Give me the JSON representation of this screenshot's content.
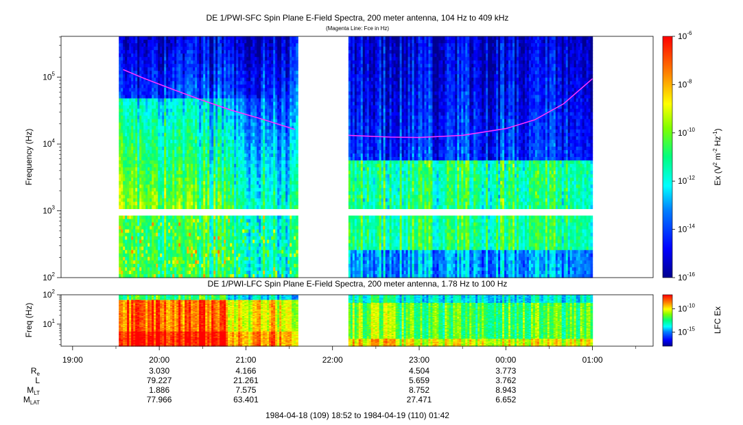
{
  "chart_data": [
    {
      "type": "heatmap",
      "id": "sfc",
      "title": "DE 1/PWI-SFC  Spin Plane E-Field Spectra, 200 meter antenna, 104 Hz to 409 kHz",
      "subtitle": "(Magenta Line: Fce in Hz)",
      "ylabel": "Frequency (Hz)",
      "y_scale": "log",
      "ylim": [
        100,
        409000
      ],
      "y_ticks": [
        {
          "value": 100,
          "base": "10",
          "exp": "2"
        },
        {
          "value": 1000,
          "base": "10",
          "exp": "3"
        },
        {
          "value": 10000,
          "base": "10",
          "exp": "4"
        },
        {
          "value": 100000,
          "base": "10",
          "exp": "5"
        }
      ],
      "x_range": [
        "18:52",
        "01:42"
      ],
      "data_intervals": [
        [
          "19:32",
          "21:36"
        ],
        [
          "22:11",
          "01:00"
        ]
      ],
      "colorbar": {
        "label_main": "Ex (V",
        "label_sup1": "2",
        "label_mid": " m",
        "label_sup2": "-2",
        "label_mid2": " Hz",
        "label_sup3": "-1",
        "label_end": ")",
        "scale": "log",
        "range": [
          1e-16,
          1e-06
        ],
        "ticks": [
          {
            "value": 1e-06,
            "base": "10",
            "exp": "-6"
          },
          {
            "value": 1e-08,
            "base": "10",
            "exp": "-8"
          },
          {
            "value": 1e-10,
            "base": "10",
            "exp": "-10"
          },
          {
            "value": 1e-12,
            "base": "10",
            "exp": "-12"
          },
          {
            "value": 1e-14,
            "base": "10",
            "exp": "-14"
          },
          {
            "value": 1e-16,
            "base": "10",
            "exp": "-16"
          }
        ]
      },
      "fce_line": {
        "color": "#ff33ff",
        "segment1": [
          [
            "19:35",
            130000
          ],
          [
            "19:50",
            95000
          ],
          [
            "20:10",
            65000
          ],
          [
            "20:30",
            45000
          ],
          [
            "20:50",
            32000
          ],
          [
            "21:10",
            24000
          ],
          [
            "21:34",
            16500
          ]
        ],
        "segment2": [
          [
            "22:11",
            13500
          ],
          [
            "22:40",
            12700
          ],
          [
            "23:00",
            12500
          ],
          [
            "23:30",
            13500
          ],
          [
            "00:00",
            17000
          ],
          [
            "00:20",
            23000
          ],
          [
            "00:40",
            40000
          ],
          [
            "01:00",
            95000
          ]
        ]
      }
    },
    {
      "type": "heatmap",
      "id": "lfc",
      "title": "DE 1/PWI-LFC  Spin Plane E-Field Spectra, 200 meter antenna, 1.78 Hz to 100 Hz",
      "ylabel": "Freq (Hz)",
      "y_scale": "log",
      "ylim": [
        1.78,
        100
      ],
      "y_ticks": [
        {
          "value": 100,
          "base": "10",
          "exp": "2"
        },
        {
          "value": 10,
          "base": "10",
          "exp": "1"
        }
      ],
      "data_intervals": [
        [
          "19:32",
          "21:36"
        ],
        [
          "22:11",
          "01:00"
        ]
      ],
      "colorbar": {
        "label": "LFC Ex",
        "scale": "log",
        "ticks": [
          {
            "value": 1e-10,
            "base": "10",
            "exp": "-10"
          },
          {
            "value": 1e-15,
            "base": "10",
            "exp": "-15"
          }
        ]
      }
    }
  ],
  "x_axis": {
    "ticks": [
      {
        "label": "19:00",
        "t": "19:00"
      },
      {
        "label": "20:00",
        "t": "20:00"
      },
      {
        "label": "21:00",
        "t": "21:00"
      },
      {
        "label": "22:00",
        "t": "22:00"
      },
      {
        "label": "23:00",
        "t": "23:00"
      },
      {
        "label": "00:00",
        "t": "00:00"
      },
      {
        "label": "01:00",
        "t": "01:00"
      }
    ]
  },
  "ephemeris": {
    "rows": [
      {
        "label": "R",
        "sub": "e",
        "values": [
          {
            "t": "20:00",
            "v": "3.030"
          },
          {
            "t": "21:00",
            "v": "4.166"
          },
          {
            "t": "23:00",
            "v": "4.504"
          },
          {
            "t": "00:00",
            "v": "3.773"
          }
        ]
      },
      {
        "label": "L",
        "sub": "",
        "values": [
          {
            "t": "20:00",
            "v": "79.227"
          },
          {
            "t": "21:00",
            "v": "21.261"
          },
          {
            "t": "23:00",
            "v": "5.659"
          },
          {
            "t": "00:00",
            "v": "3.762"
          }
        ]
      },
      {
        "label": "M",
        "sub": "LT",
        "values": [
          {
            "t": "20:00",
            "v": "1.886"
          },
          {
            "t": "21:00",
            "v": "7.575"
          },
          {
            "t": "23:00",
            "v": "8.752"
          },
          {
            "t": "00:00",
            "v": "8.943"
          }
        ]
      },
      {
        "label": "M",
        "sub": "LAT",
        "values": [
          {
            "t": "20:00",
            "v": "77.966"
          },
          {
            "t": "21:00",
            "v": "63.401"
          },
          {
            "t": "23:00",
            "v": "27.471"
          },
          {
            "t": "00:00",
            "v": "6.652"
          }
        ]
      }
    ]
  },
  "time_range_text": "1984-04-18 (109) 18:52 to 1984-04-19 (110) 01:42"
}
